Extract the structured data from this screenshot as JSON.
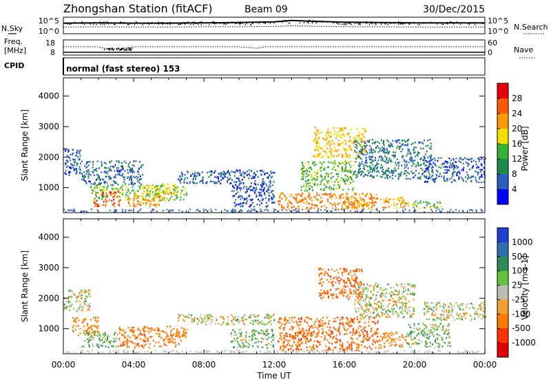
{
  "header": {
    "station": "Zhongshan Station (fitACF)",
    "beam": "Beam 09",
    "date": "30/Dec/2015"
  },
  "left_labels": {
    "nsky": "N.Sky",
    "freq": "Freq.",
    "freq_unit": "[MHz]",
    "cpid": "CPID"
  },
  "right_labels": {
    "nsearch": "N.Search",
    "nave": "Nave"
  },
  "noise_panel": {
    "ticks_left": [
      "10^5",
      "10^0"
    ],
    "ticks_right": [
      "10^5",
      "10^0"
    ]
  },
  "freq_panel": {
    "ticks_left": [
      "18",
      "8"
    ],
    "ticks_right": [
      "60",
      "0"
    ]
  },
  "cpid_text": "normal (fast stereo) 153",
  "power_scale": {
    "label": "Power [dB]",
    "ticks": [
      "28",
      "24",
      "20",
      "16",
      "12",
      "8",
      "4"
    ],
    "colors": [
      "#e8000b",
      "#ff5a00",
      "#ff9a00",
      "#f0e000",
      "#33b233",
      "#1e8a4a",
      "#2a5fc0",
      "#0000ff"
    ]
  },
  "velocity_scale": {
    "label": "Velocity [m s-1]",
    "ticks": [
      "1000",
      "500",
      "100",
      "25",
      "-25",
      "-100",
      "-500",
      "-1000"
    ],
    "colors": [
      "#1f3fd0",
      "#2e6fb0",
      "#2e8a56",
      "#62c23a",
      "#bdbdb5",
      "#f0a030",
      "#ff7a00",
      "#ff3300",
      "#e00000"
    ]
  },
  "axes": {
    "ylabel": "Slant Range [km]",
    "xlabel": "Time UT",
    "yticks": [
      "4000",
      "3000",
      "2000",
      "1000"
    ],
    "xticks": [
      "00:00",
      "04:00",
      "08:00",
      "12:00",
      "16:00",
      "20:00",
      "00:00"
    ]
  },
  "chart_data": [
    {
      "type": "line",
      "title": "N.Sky / N.Search",
      "x": [
        0,
        2,
        4,
        6,
        8,
        10,
        12,
        13,
        14,
        16,
        18,
        20,
        22,
        24
      ],
      "series": [
        {
          "name": "N.Sky",
          "values": [
            3.2,
            3.3,
            3.2,
            3.2,
            3.3,
            3.4,
            3.6,
            4.0,
            3.8,
            3.5,
            3.4,
            3.3,
            3.3,
            3.3
          ]
        },
        {
          "name": "N.Search",
          "values": [
            2.0,
            2.1,
            2.0,
            2.0,
            2.1,
            2.1,
            2.2,
            2.4,
            2.3,
            2.1,
            2.1,
            2.0,
            2.0,
            2.0
          ]
        }
      ],
      "ylim": [
        0,
        5
      ]
    },
    {
      "type": "line",
      "title": "Freq / Nave",
      "x": [
        0,
        2,
        2.5,
        3.5,
        4,
        10,
        11,
        11.5,
        12,
        24
      ],
      "series": [
        {
          "name": "Freq",
          "values": [
            13.5,
            13.5,
            12.0,
            12.5,
            13.5,
            13.5,
            12.5,
            13.5,
            13.5,
            13.5
          ]
        },
        {
          "name": "Nave",
          "values": [
            2,
            2,
            2,
            2,
            2,
            2,
            2,
            2,
            2,
            2
          ]
        }
      ],
      "ylim": [
        8,
        18
      ]
    },
    {
      "type": "heatmap",
      "title": "Power",
      "xlabel": "Time UT",
      "ylabel": "Slant Range [km]",
      "xlim": [
        0,
        24
      ],
      "ylim": [
        180,
        4600
      ],
      "zlabel": "Power [dB]",
      "zlim": [
        0,
        30
      ],
      "patches": [
        {
          "t0": 0.0,
          "t1": 1.0,
          "r0": 1400,
          "r1": 2300,
          "v": 6
        },
        {
          "t0": 1.0,
          "t1": 4.5,
          "r0": 1100,
          "r1": 1900,
          "v": 7
        },
        {
          "t0": 1.5,
          "t1": 7.0,
          "r0": 600,
          "r1": 1100,
          "v": 16
        },
        {
          "t0": 1.7,
          "t1": 3.2,
          "r0": 400,
          "r1": 900,
          "v": 26
        },
        {
          "t0": 3.5,
          "t1": 5.5,
          "r0": 400,
          "r1": 800,
          "v": 23
        },
        {
          "t0": 4.5,
          "t1": 6.5,
          "r0": 800,
          "r1": 1150,
          "v": 18
        },
        {
          "t0": 6.5,
          "t1": 12.0,
          "r0": 1150,
          "r1": 1600,
          "v": 6
        },
        {
          "t0": 9.5,
          "t1": 12.0,
          "r0": 400,
          "r1": 1150,
          "v": 5
        },
        {
          "t0": 12.2,
          "t1": 17.8,
          "r0": 300,
          "r1": 850,
          "v": 24
        },
        {
          "t0": 13.5,
          "t1": 16.5,
          "r0": 900,
          "r1": 1900,
          "v": 14
        },
        {
          "t0": 14.2,
          "t1": 17.2,
          "r0": 2000,
          "r1": 3000,
          "v": 20
        },
        {
          "t0": 16.0,
          "t1": 19.5,
          "r0": 350,
          "r1": 700,
          "v": 22
        },
        {
          "t0": 16.5,
          "t1": 21.0,
          "r0": 1300,
          "r1": 2600,
          "v": 8
        },
        {
          "t0": 19.5,
          "t1": 21.5,
          "r0": 350,
          "r1": 600,
          "v": 14
        },
        {
          "t0": 20.5,
          "t1": 24.0,
          "r0": 1200,
          "r1": 2000,
          "v": 6
        }
      ]
    },
    {
      "type": "heatmap",
      "title": "Velocity",
      "xlabel": "Time UT",
      "ylabel": "Slant Range [km]",
      "xlim": [
        0,
        24
      ],
      "ylim": [
        180,
        4600
      ],
      "zlabel": "Velocity [m s-1]",
      "zlim": [
        -1000,
        1000
      ],
      "patches": [
        {
          "t0": 0.0,
          "t1": 1.5,
          "r0": 1600,
          "r1": 2300,
          "v": 0
        },
        {
          "t0": 0.5,
          "t1": 2.0,
          "r0": 800,
          "r1": 1400,
          "v": -300
        },
        {
          "t0": 1.0,
          "t1": 3.0,
          "r0": 400,
          "r1": 900,
          "v": 80
        },
        {
          "t0": 3.0,
          "t1": 7.0,
          "r0": 400,
          "r1": 1100,
          "v": -400
        },
        {
          "t0": 6.5,
          "t1": 12.0,
          "r0": 1150,
          "r1": 1500,
          "v": 0
        },
        {
          "t0": 9.5,
          "t1": 12.0,
          "r0": 400,
          "r1": 1000,
          "v": 80
        },
        {
          "t0": 12.2,
          "t1": 18.0,
          "r0": 300,
          "r1": 1400,
          "v": -450
        },
        {
          "t0": 14.5,
          "t1": 17.0,
          "r0": 2000,
          "r1": 3000,
          "v": -450
        },
        {
          "t0": 16.5,
          "t1": 20.0,
          "r0": 1400,
          "r1": 2500,
          "v": 0
        },
        {
          "t0": 18.0,
          "t1": 19.5,
          "r0": 400,
          "r1": 900,
          "v": -200
        },
        {
          "t0": 19.5,
          "t1": 22.0,
          "r0": 400,
          "r1": 1200,
          "v": 60
        },
        {
          "t0": 20.5,
          "t1": 24.0,
          "r0": 1300,
          "r1": 1900,
          "v": 0
        }
      ]
    }
  ]
}
